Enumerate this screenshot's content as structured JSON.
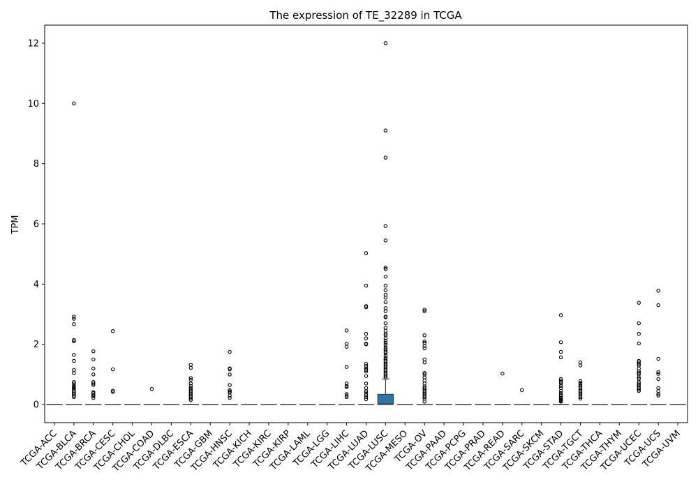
{
  "chart_data": {
    "type": "box",
    "title": "The expression of TE_32289 in TCGA",
    "xlabel": "",
    "ylabel": "TPM",
    "ylim": [
      -0.6,
      12.6
    ],
    "yticks": [
      0,
      2,
      4,
      6,
      8,
      10,
      12
    ],
    "grid": false,
    "box_color": "#3274a1",
    "categories": [
      "TCGA-ACC",
      "TCGA-BLCA",
      "TCGA-BRCA",
      "TCGA-CESC",
      "TCGA-CHOL",
      "TCGA-COAD",
      "TCGA-DLBC",
      "TCGA-ESCA",
      "TCGA-GBM",
      "TCGA-HNSC",
      "TCGA-KICH",
      "TCGA-KIRC",
      "TCGA-KIRP",
      "TCGA-LAML",
      "TCGA-LGG",
      "TCGA-LIHC",
      "TCGA-LUAD",
      "TCGA-LUSC",
      "TCGA-MESO",
      "TCGA-OV",
      "TCGA-PAAD",
      "TCGA-PCPG",
      "TCGA-PRAD",
      "TCGA-READ",
      "TCGA-SARC",
      "TCGA-SKCM",
      "TCGA-STAD",
      "TCGA-TGCT",
      "TCGA-THCA",
      "TCGA-THYM",
      "TCGA-UCEC",
      "TCGA-UCS",
      "TCGA-UVM"
    ],
    "boxes": [
      {
        "q1": 0,
        "median": 0,
        "q3": 0,
        "whisker_low": 0,
        "whisker_high": 0,
        "outliers": []
      },
      {
        "q1": 0,
        "median": 0,
        "q3": 0,
        "whisker_low": 0,
        "whisker_high": 0,
        "outliers": [
          10.0,
          2.92,
          2.85,
          2.67,
          2.14,
          2.1,
          1.65,
          1.45,
          1.15,
          1.05,
          0.75,
          0.7,
          0.62,
          0.58,
          0.55,
          0.5,
          0.45,
          0.4,
          0.35,
          0.3,
          0.25
        ]
      },
      {
        "q1": 0,
        "median": 0,
        "q3": 0,
        "whisker_low": 0,
        "whisker_high": 0,
        "outliers": [
          1.77,
          1.5,
          1.2,
          1.0,
          0.75,
          0.7,
          0.65,
          0.42,
          0.38,
          0.33,
          0.28,
          0.22
        ]
      },
      {
        "q1": 0,
        "median": 0,
        "q3": 0,
        "whisker_low": 0,
        "whisker_high": 0,
        "outliers": [
          2.44,
          1.17,
          0.46,
          0.42
        ]
      },
      {
        "q1": 0,
        "median": 0,
        "q3": 0,
        "whisker_low": 0,
        "whisker_high": 0,
        "outliers": []
      },
      {
        "q1": 0,
        "median": 0,
        "q3": 0,
        "whisker_low": 0,
        "whisker_high": 0,
        "outliers": [
          0.52
        ]
      },
      {
        "q1": 0,
        "median": 0,
        "q3": 0,
        "whisker_low": 0,
        "whisker_high": 0,
        "outliers": []
      },
      {
        "q1": 0,
        "median": 0,
        "q3": 0,
        "whisker_low": 0,
        "whisker_high": 0,
        "outliers": [
          1.32,
          1.22,
          0.88,
          0.82,
          0.7,
          0.62,
          0.55,
          0.5,
          0.45,
          0.4,
          0.35,
          0.3,
          0.25,
          0.2,
          0.15
        ]
      },
      {
        "q1": 0,
        "median": 0,
        "q3": 0,
        "whisker_low": 0,
        "whisker_high": 0,
        "outliers": []
      },
      {
        "q1": 0,
        "median": 0,
        "q3": 0,
        "whisker_low": 0,
        "whisker_high": 0,
        "outliers": [
          1.75,
          1.2,
          1.17,
          1.0,
          0.65,
          0.48,
          0.44,
          0.4,
          0.3,
          0.22
        ]
      },
      {
        "q1": 0,
        "median": 0,
        "q3": 0,
        "whisker_low": 0,
        "whisker_high": 0,
        "outliers": []
      },
      {
        "q1": 0,
        "median": 0,
        "q3": 0,
        "whisker_low": 0,
        "whisker_high": 0,
        "outliers": []
      },
      {
        "q1": 0,
        "median": 0,
        "q3": 0,
        "whisker_low": 0,
        "whisker_high": 0,
        "outliers": []
      },
      {
        "q1": 0,
        "median": 0,
        "q3": 0,
        "whisker_low": 0,
        "whisker_high": 0,
        "outliers": []
      },
      {
        "q1": 0,
        "median": 0,
        "q3": 0,
        "whisker_low": 0,
        "whisker_high": 0,
        "outliers": []
      },
      {
        "q1": 0,
        "median": 0,
        "q3": 0,
        "whisker_low": 0,
        "whisker_high": 0,
        "outliers": [
          2.46,
          2.02,
          1.92,
          1.25,
          0.7,
          0.62,
          0.58,
          0.35,
          0.3,
          0.25
        ]
      },
      {
        "q1": 0,
        "median": 0,
        "q3": 0,
        "whisker_low": 0,
        "whisker_high": 0,
        "outliers": [
          5.03,
          3.95,
          3.27,
          3.23,
          2.35,
          2.2,
          2.02,
          2.0,
          1.35,
          1.28,
          1.2,
          1.15,
          1.1,
          0.95,
          0.7,
          0.55,
          0.45,
          0.4,
          0.32,
          0.25,
          0.18
        ]
      },
      {
        "q1": 0,
        "median": 0.02,
        "q3": 0.34,
        "whisker_low": 0,
        "whisker_high": 0.85,
        "outliers": [
          12.0,
          9.1,
          8.2,
          5.93,
          5.45,
          4.55,
          4.5,
          4.25,
          3.95,
          3.8,
          3.65,
          3.55,
          3.4,
          3.2,
          3.1,
          2.92,
          2.9,
          2.7,
          2.55,
          2.45,
          2.35,
          2.3,
          2.2,
          2.12,
          2.05,
          1.98,
          1.9,
          1.85,
          1.8,
          1.75,
          1.7,
          1.62,
          1.55,
          1.5,
          1.45,
          1.4,
          1.35,
          1.3,
          1.25,
          1.2,
          1.15,
          1.1,
          1.05,
          1.0,
          0.95,
          0.9
        ]
      },
      {
        "q1": 0,
        "median": 0,
        "q3": 0,
        "whisker_low": 0,
        "whisker_high": 0,
        "outliers": []
      },
      {
        "q1": 0,
        "median": 0,
        "q3": 0,
        "whisker_low": 0,
        "whisker_high": 0,
        "outliers": [
          3.15,
          3.1,
          2.3,
          2.1,
          2.05,
          1.95,
          1.87,
          1.5,
          1.4,
          1.05,
          1.0,
          0.9,
          0.8,
          0.7,
          0.6,
          0.55,
          0.5,
          0.45,
          0.4,
          0.35,
          0.3,
          0.25,
          0.2,
          0.1
        ]
      },
      {
        "q1": 0,
        "median": 0,
        "q3": 0,
        "whisker_low": 0,
        "whisker_high": 0,
        "outliers": []
      },
      {
        "q1": 0,
        "median": 0,
        "q3": 0,
        "whisker_low": 0,
        "whisker_high": 0,
        "outliers": []
      },
      {
        "q1": 0,
        "median": 0,
        "q3": 0,
        "whisker_low": 0,
        "whisker_high": 0,
        "outliers": []
      },
      {
        "q1": 0,
        "median": 0,
        "q3": 0,
        "whisker_low": 0,
        "whisker_high": 0,
        "outliers": [
          1.03
        ]
      },
      {
        "q1": 0,
        "median": 0,
        "q3": 0,
        "whisker_low": 0,
        "whisker_high": 0,
        "outliers": [
          0.48
        ]
      },
      {
        "q1": 0,
        "median": 0,
        "q3": 0,
        "whisker_low": 0,
        "whisker_high": 0,
        "outliers": []
      },
      {
        "q1": 0,
        "median": 0,
        "q3": 0,
        "whisker_low": 0,
        "whisker_high": 0,
        "outliers": [
          2.97,
          2.07,
          1.75,
          1.57,
          0.85,
          0.8,
          0.75,
          0.7,
          0.62,
          0.55,
          0.45,
          0.38,
          0.32,
          0.28,
          0.22,
          0.18,
          0.15,
          0.12,
          0.1
        ]
      },
      {
        "q1": 0,
        "median": 0,
        "q3": 0,
        "whisker_low": 0,
        "whisker_high": 0,
        "outliers": [
          1.4,
          1.3,
          0.78,
          0.72,
          0.65,
          0.6,
          0.55,
          0.5,
          0.45,
          0.4,
          0.35,
          0.3,
          0.25,
          0.2
        ]
      },
      {
        "q1": 0,
        "median": 0,
        "q3": 0,
        "whisker_low": 0,
        "whisker_high": 0,
        "outliers": []
      },
      {
        "q1": 0,
        "median": 0,
        "q3": 0,
        "whisker_low": 0,
        "whisker_high": 0,
        "outliers": []
      },
      {
        "q1": 0,
        "median": 0,
        "q3": 0,
        "whisker_low": 0,
        "whisker_high": 0,
        "outliers": [
          3.38,
          2.7,
          2.35,
          2.03,
          1.45,
          1.4,
          1.35,
          1.3,
          1.2,
          1.1,
          1.05,
          1.0,
          0.9,
          0.85,
          0.75,
          0.7,
          0.65,
          0.6,
          0.55,
          0.5,
          0.45
        ]
      },
      {
        "q1": 0,
        "median": 0,
        "q3": 0,
        "whisker_low": 0,
        "whisker_high": 0,
        "outliers": [
          3.78,
          3.3,
          1.52,
          1.08,
          1.02,
          0.85,
          0.55,
          0.45,
          0.35,
          0.3
        ]
      },
      {
        "q1": 0,
        "median": 0,
        "q3": 0,
        "whisker_low": 0,
        "whisker_high": 0,
        "outliers": []
      }
    ]
  }
}
